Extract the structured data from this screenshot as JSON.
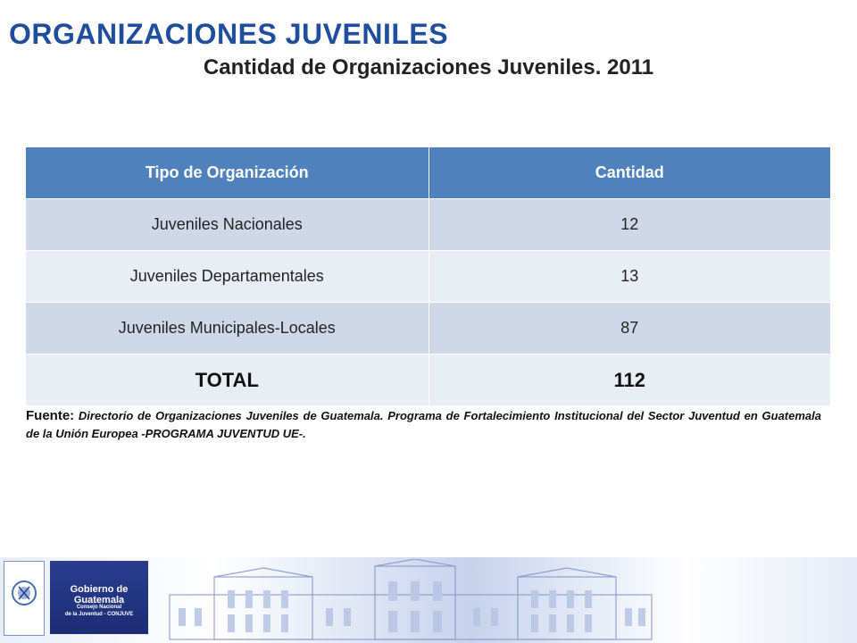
{
  "header": {
    "title": "ORGANIZACIONES JUVENILES",
    "subtitle": "Cantidad de Organizaciones Juveniles. 2011"
  },
  "table": {
    "headers": [
      "Tipo de Organización",
      "Cantidad"
    ],
    "rows": [
      [
        "Juveniles Nacionales",
        "12"
      ],
      [
        "Juveniles Departamentales",
        "13"
      ],
      [
        "Juveniles Municipales-Locales",
        "87"
      ]
    ],
    "total": [
      "TOTAL",
      "112"
    ]
  },
  "source": {
    "label": "Fuente:",
    "text": "Directorio de Organizaciones Juveniles de Guatemala. Programa de Fortalecimiento Institucional del Sector Juventud en Guatemala de la Unión Europea -PROGRAMA JUVENTUD UE-."
  },
  "footer": {
    "government_name": "Gobierno de Guatemala",
    "council_line1": "Consejo Nacional",
    "council_line2": "de la Juventud - CONJUVE"
  },
  "colors": {
    "title": "#1f4e9c",
    "table_header": "#4f81bd",
    "row_dark": "#d0d8e8",
    "row_light": "#e9edf4",
    "footer_box": "#2b3d8f"
  }
}
